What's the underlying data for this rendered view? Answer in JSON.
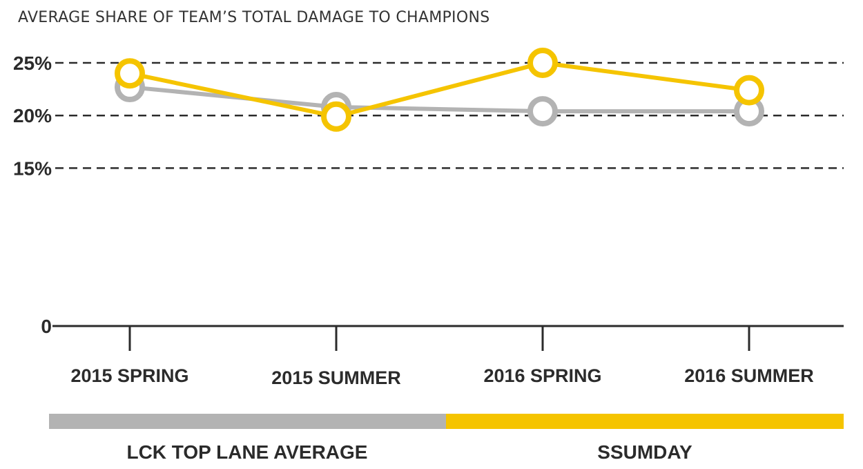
{
  "chart_data": {
    "type": "line",
    "title": "AVERAGE SHARE OF TEAM’S TOTAL DAMAGE TO CHAMPIONS",
    "categories": [
      "2015 SPRING",
      "2015 SUMMER",
      "2016 SPRING",
      "2016 SUMMER"
    ],
    "y_ticks": [
      {
        "value": 0,
        "label": "0"
      },
      {
        "value": 15,
        "label": "15%"
      },
      {
        "value": 20,
        "label": "20%"
      },
      {
        "value": 25,
        "label": "25%"
      }
    ],
    "ylim": [
      0,
      25
    ],
    "grid": "dashed horizontal at 15%, 20%, 25%",
    "legend_position": "bottom",
    "series": [
      {
        "name": "LCK TOP LANE AVERAGE",
        "color": "#b3b3b3",
        "values": [
          22.7,
          20.8,
          20.4,
          20.4
        ]
      },
      {
        "name": "SSUMDAY",
        "color": "#f5c400",
        "values": [
          24.0,
          19.9,
          25.0,
          22.4
        ]
      }
    ]
  }
}
